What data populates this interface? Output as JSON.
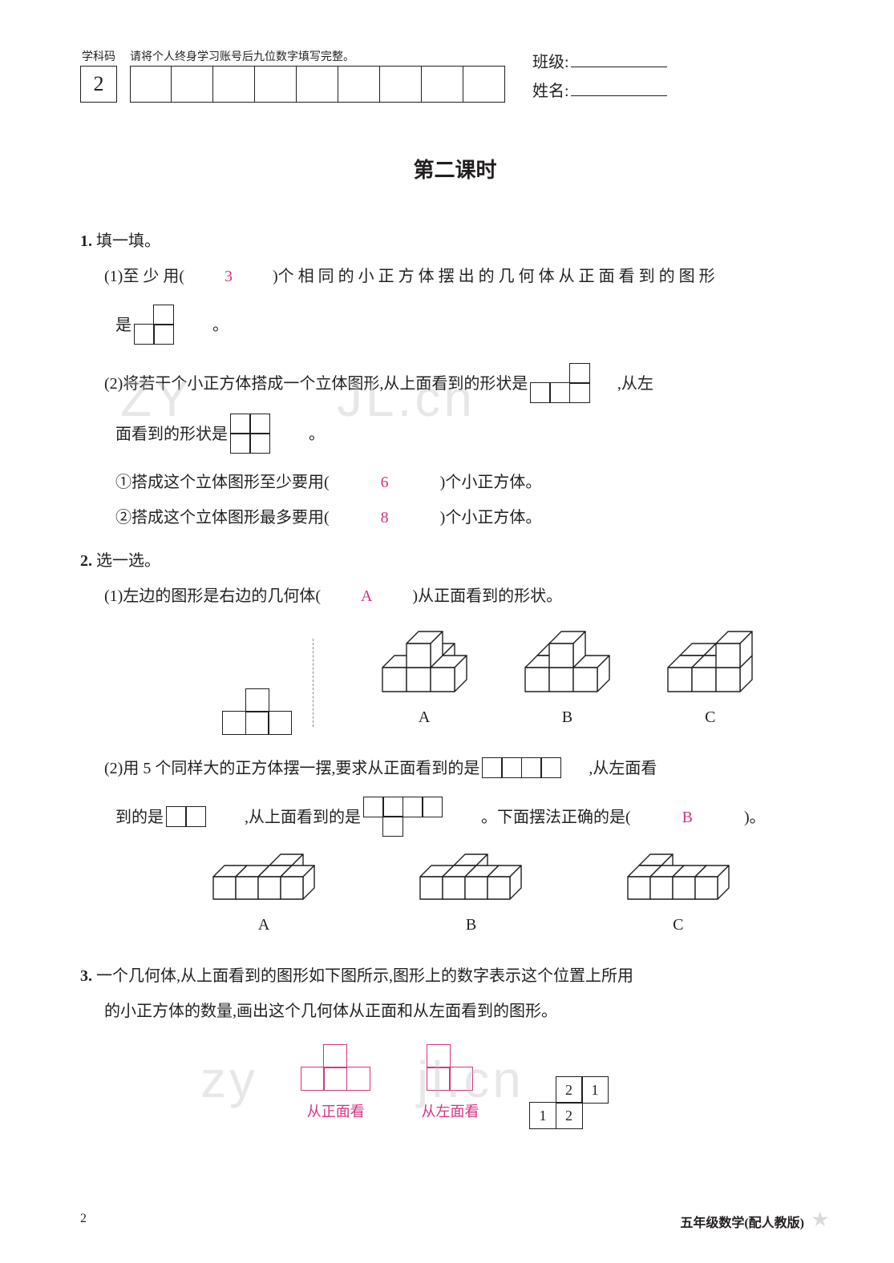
{
  "header": {
    "code_label": "学科码",
    "code_value": "2",
    "fill_label": "请将个人终身学习账号后九位数字填写完整。",
    "fill_count": 9,
    "class_label": "班级:",
    "name_label": "姓名:"
  },
  "title": "第二课时",
  "q1": {
    "num": "1.",
    "head": "填一填。",
    "p1a": "(1)至 少 用(　",
    "p1ans": "3",
    "p1b": "　)个 相 同 的 小 正 方 体 摆 出 的 几 何 体 从 正 面 看 到 的 图 形",
    "p1c_pre": "是",
    "p1c_post": "。",
    "shape1": {
      "rows": [
        [
          0,
          1
        ],
        [
          1,
          1
        ]
      ],
      "cell": 26,
      "stroke": "#231f20"
    },
    "p2a": "(2)将若干个小正方体搭成一个立体图形,从上面看到的形状是",
    "p2b": ",从左",
    "shape2": {
      "rows": [
        [
          0,
          0,
          1
        ],
        [
          1,
          1,
          1
        ]
      ],
      "cell": 26,
      "stroke": "#231f20"
    },
    "p2c": "面看到的形状是",
    "p2d": "。",
    "shape3": {
      "rows": [
        [
          1,
          1
        ],
        [
          1,
          1
        ]
      ],
      "cell": 26,
      "stroke": "#231f20"
    },
    "p2e_pre": "①搭成这个立体图形至少要用(　",
    "p2e_ans": "6",
    "p2e_post": "　)个小正方体。",
    "p2f_pre": "②搭成这个立体图形最多要用(　",
    "p2f_ans": "8",
    "p2f_post": "　)个小正方体。"
  },
  "q2": {
    "num": "2.",
    "head": "选一选。",
    "p1_pre": "(1)左边的图形是右边的几何体(　",
    "p1_ans": "A",
    "p1_post": "　)从正面看到的形状。",
    "left_shape": {
      "rows": [
        [
          0,
          1,
          0
        ],
        [
          1,
          1,
          1
        ]
      ],
      "cell": 30,
      "stroke": "#231f20"
    },
    "labels": {
      "A": "A",
      "B": "B",
      "C": "C"
    },
    "p2a": "(2)用 5 个同样大的正方体摆一摆,要求从正面看到的是",
    "p2b": ",从左面看",
    "shape_front": {
      "rows": [
        [
          1,
          1,
          1,
          1
        ]
      ],
      "cell": 26,
      "stroke": "#231f20"
    },
    "p2c": "到的是",
    "shape_left": {
      "rows": [
        [
          1,
          1
        ]
      ],
      "cell": 26,
      "stroke": "#231f20"
    },
    "p2d": ",从上面看到的是",
    "shape_top": {
      "rows": [
        [
          1,
          1,
          1,
          1
        ],
        [
          0,
          1,
          0,
          0
        ]
      ],
      "cell": 26,
      "stroke": "#231f20"
    },
    "p2e_pre": "。下面摆法正确的是(　",
    "p2e_ans": "B",
    "p2e_post": "　)。"
  },
  "q3": {
    "num": "3.",
    "text1": "一个几何体,从上面看到的图形如下图所示,图形上的数字表示这个位置上所用",
    "text2": "的小正方体的数量,画出这个几何体从正面和从左面看到的图形。",
    "topview": {
      "rows": [
        [
          0,
          "2",
          "1"
        ],
        [
          "1",
          "2",
          0
        ]
      ],
      "cell": 34,
      "stroke": "#231f20"
    },
    "front": {
      "label": "从正面看",
      "rows": [
        [
          0,
          1,
          0
        ],
        [
          1,
          1,
          1
        ]
      ],
      "cell": 30,
      "stroke": "#d63384"
    },
    "left": {
      "label": "从左面看",
      "rows": [
        [
          1,
          0
        ],
        [
          1,
          1
        ]
      ],
      "cell": 30,
      "stroke": "#d63384"
    }
  },
  "footer": {
    "page": "2",
    "right": "五年级数学(配人教版)"
  },
  "iso": {
    "q2_1": {
      "A": {
        "cubes": [
          [
            0,
            0,
            0
          ],
          [
            1,
            0,
            0
          ],
          [
            2,
            0,
            0
          ],
          [
            1,
            1,
            0
          ],
          [
            1,
            0,
            1
          ]
        ],
        "size": 30
      },
      "B": {
        "cubes": [
          [
            0,
            0,
            0
          ],
          [
            1,
            0,
            0
          ],
          [
            2,
            0,
            0
          ],
          [
            0,
            1,
            0
          ],
          [
            1,
            0,
            1
          ]
        ],
        "size": 30
      },
      "C": {
        "cubes": [
          [
            0,
            0,
            0
          ],
          [
            1,
            0,
            0
          ],
          [
            2,
            0,
            0
          ],
          [
            1,
            1,
            0
          ],
          [
            2,
            0,
            1
          ],
          [
            0,
            1,
            0
          ]
        ],
        "size": 30
      }
    },
    "q2_2": {
      "A": {
        "cubes": [
          [
            0,
            0,
            0
          ],
          [
            1,
            0,
            0
          ],
          [
            2,
            0,
            0
          ],
          [
            3,
            0,
            0
          ],
          [
            2,
            1,
            0
          ]
        ],
        "size": 28
      },
      "B": {
        "cubes": [
          [
            0,
            0,
            0
          ],
          [
            1,
            0,
            0
          ],
          [
            2,
            0,
            0
          ],
          [
            3,
            0,
            0
          ],
          [
            1,
            1,
            0
          ]
        ],
        "size": 28
      },
      "C": {
        "cubes": [
          [
            0,
            0,
            0
          ],
          [
            1,
            0,
            0
          ],
          [
            2,
            0,
            0
          ],
          [
            3,
            0,
            0
          ],
          [
            0,
            1,
            0
          ]
        ],
        "size": 28
      }
    }
  },
  "watermark": {
    "a": "ZY",
    "b": "JL.cn",
    "c": "zy",
    "d": "jl.cn"
  }
}
